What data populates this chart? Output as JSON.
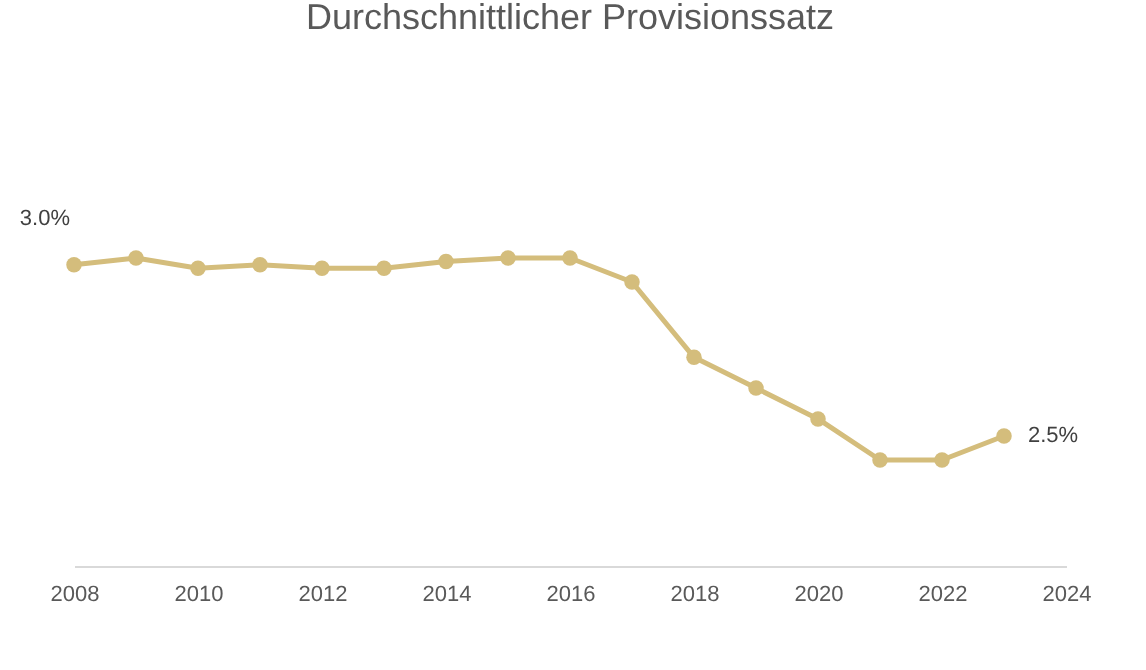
{
  "chart_data": {
    "type": "line",
    "title": "Durchschnittlicher Provisionssatz",
    "x": [
      2008,
      2009,
      2010,
      2011,
      2012,
      2013,
      2014,
      2015,
      2016,
      2017,
      2018,
      2019,
      2020,
      2021,
      2022,
      2023
    ],
    "series": [
      {
        "color": "#d4bd7c",
        "values": [
          3.0,
          3.02,
          2.99,
          3.0,
          2.99,
          2.99,
          3.01,
          3.02,
          3.02,
          2.95,
          2.73,
          2.64,
          2.55,
          2.43,
          2.43,
          2.5
        ],
        "value_labels": [
          "3.0%",
          null,
          null,
          null,
          null,
          null,
          null,
          null,
          null,
          null,
          null,
          null,
          null,
          null,
          null,
          "2.5%"
        ]
      }
    ],
    "xlim": [
      2008,
      2024
    ],
    "xticks": [
      2008,
      2010,
      2012,
      2014,
      2016,
      2018,
      2020,
      2022,
      2024
    ],
    "tick_labels": "x",
    "grid": false,
    "marker": "circle",
    "line_style": "solid"
  }
}
